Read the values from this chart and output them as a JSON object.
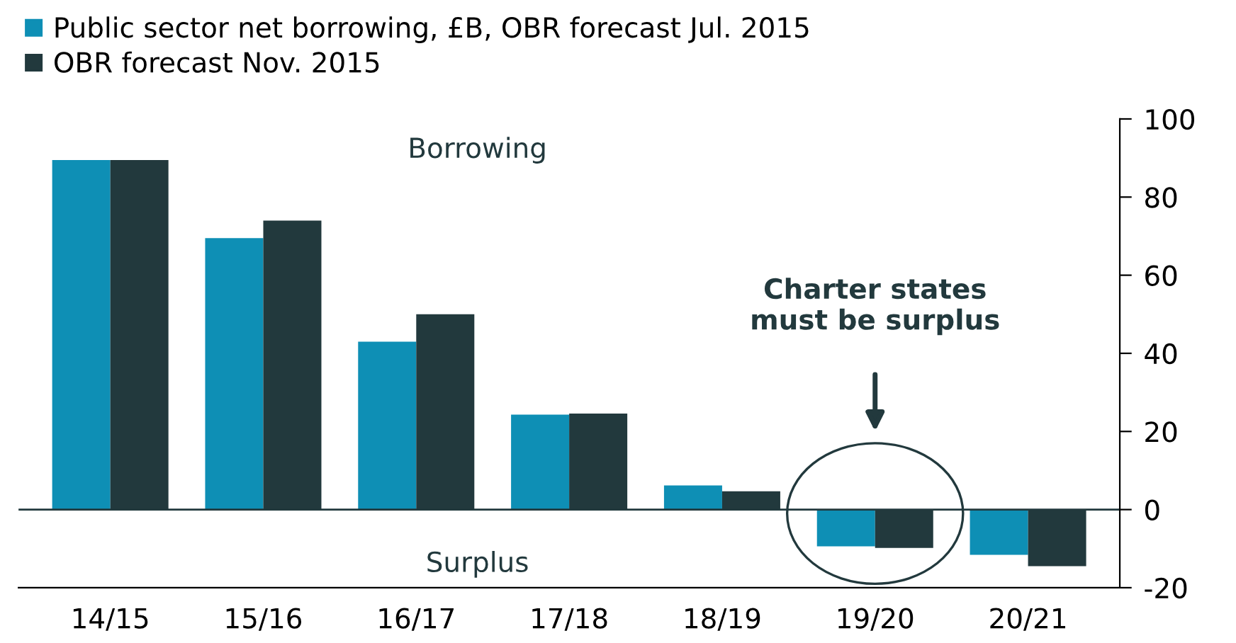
{
  "chart_data": {
    "type": "bar",
    "categories": [
      "14/15",
      "15/16",
      "16/17",
      "17/18",
      "18/19",
      "19/20",
      "20/21"
    ],
    "series": [
      {
        "name": "Public sector net borrowing, £B, OBR forecast Jul. 2015",
        "color": "#0e8fb5",
        "values": [
          89.5,
          69.5,
          43,
          24.3,
          6.2,
          -9.4,
          -11.6
        ]
      },
      {
        "name": "OBR forecast Nov. 2015",
        "color": "#22393d",
        "values": [
          89.5,
          74,
          50,
          24.6,
          4.7,
          -9.8,
          -14.5
        ]
      }
    ],
    "ylim": [
      -20,
      100
    ],
    "yticks": [
      -20,
      0,
      20,
      40,
      60,
      80,
      100
    ],
    "ref_lines": [
      {
        "axis": "y",
        "value": 0,
        "color": "#22393d"
      }
    ],
    "annotations": [
      "Borrowing",
      "Surplus",
      "Charter states\nmust be surplus"
    ],
    "legend": "top left",
    "grid": false
  }
}
